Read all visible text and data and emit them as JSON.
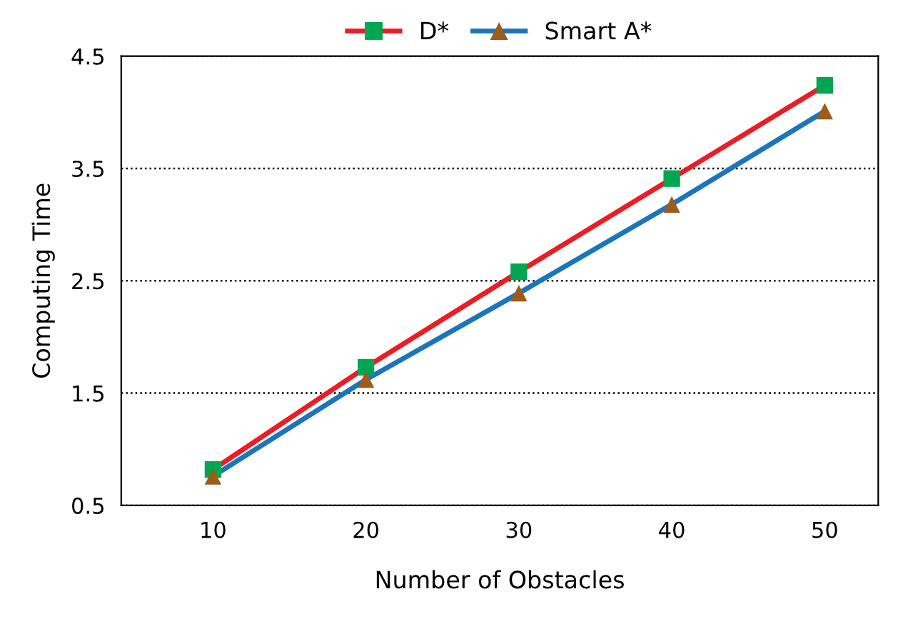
{
  "chart_data": {
    "type": "line",
    "xlabel": "Number of Obstacles",
    "ylabel": "Computing Time",
    "categories": [
      "10",
      "20",
      "30",
      "40",
      "50"
    ],
    "series": [
      {
        "name": "D*",
        "color": "#ed1c24",
        "colors": [
          "#00a651",
          "#00a651",
          "#00a651",
          "#00a651",
          "#00a651"
        ],
        "marker": "square",
        "values": [
          0.82,
          1.73,
          2.58,
          3.41,
          4.24
        ]
      },
      {
        "name": "Smart A*",
        "color": "#1b75bc",
        "colors": [
          "#9e5b1a",
          "#9e5b1a",
          "#9e5b1a",
          "#9e5b1a",
          "#9e5b1a"
        ],
        "marker": "triangle",
        "values": [
          0.76,
          1.62,
          2.39,
          3.18,
          4.01
        ]
      }
    ],
    "ylim": [
      0.5,
      4.5
    ],
    "yticks": [
      0.5,
      1.5,
      2.5,
      3.5,
      4.5
    ],
    "grid": "y",
    "line_style": "solid",
    "legend": "top"
  }
}
